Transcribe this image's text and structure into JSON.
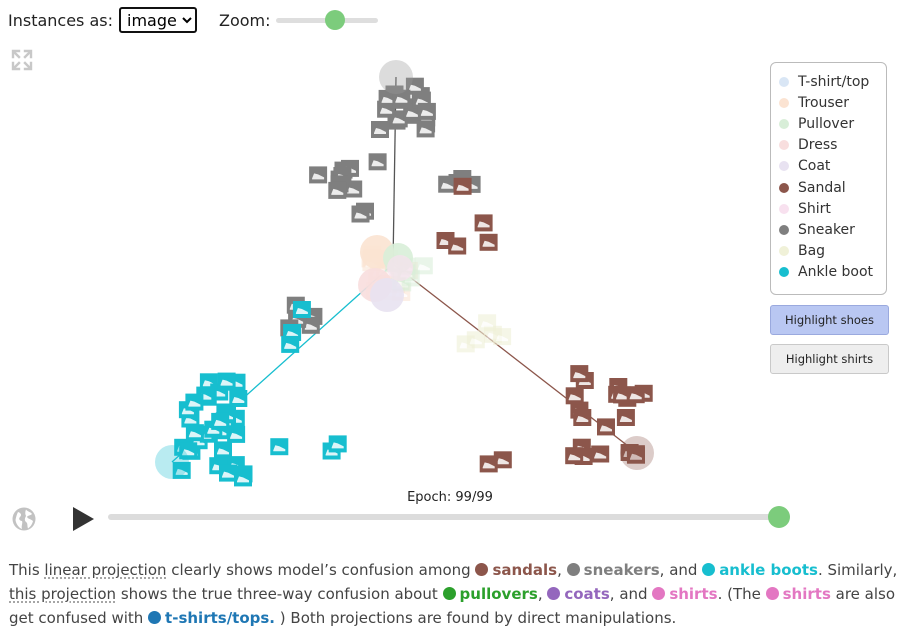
{
  "controls": {
    "instances_label": "Instances as:",
    "instances_value": "image",
    "instances_options": [
      "image"
    ],
    "zoom_label": "Zoom:",
    "zoom_level": 0.6
  },
  "legend": [
    {
      "label": "T-shirt/top",
      "color": "#d9e6f5"
    },
    {
      "label": "Trouser",
      "color": "#fbe3d2"
    },
    {
      "label": "Pullover",
      "color": "#d8eed8"
    },
    {
      "label": "Dress",
      "color": "#f8dede"
    },
    {
      "label": "Coat",
      "color": "#e8e2f1"
    },
    {
      "label": "Sandal",
      "color": "#8c564b"
    },
    {
      "label": "Shirt",
      "color": "#f8e1ef"
    },
    {
      "label": "Sneaker",
      "color": "#7f7f7f"
    },
    {
      "label": "Bag",
      "color": "#f0f1d8"
    },
    {
      "label": "Ankle boot",
      "color": "#17becf"
    }
  ],
  "buttons": {
    "highlight_shoes": "Highlight shoes",
    "highlight_shirts": "Highlight shirts"
  },
  "epoch": {
    "label": "Epoch: 99/99",
    "current": 99,
    "total": 99
  },
  "caption": {
    "t1": "This ",
    "link1": "linear projection",
    "t2": " clearly shows model’s confusion among ",
    "sandals": "sandals",
    "t3": ", ",
    "sneakers": "sneakers",
    "t4": ", and ",
    "ankle_boots": "ankle boots",
    "t5": ". Similarly, ",
    "link2": "this projection",
    "t6": " shows the true three-way confusion about ",
    "pullovers": "pullovers",
    "t7": ", ",
    "coats": "coats",
    "t8": ", and ",
    "shirts": "shirts",
    "t9": ". (The ",
    "shirts2": "shirts",
    "t10": " are also get confused with ",
    "tshirts": "t-shirts/tops.",
    "t11": " ) Both projections are found by direct manipulations."
  },
  "caption_colors": {
    "sandal": "#8c564b",
    "sneaker": "#7f7f7f",
    "ankle_boot": "#17becf",
    "pullover": "#2ca02c",
    "coat": "#9467bd",
    "shirt": "#e377c2",
    "tshirt": "#1f77b4"
  },
  "icons": {
    "expand": "expand-icon",
    "globe": "globe-icon",
    "play": "play-icon"
  }
}
